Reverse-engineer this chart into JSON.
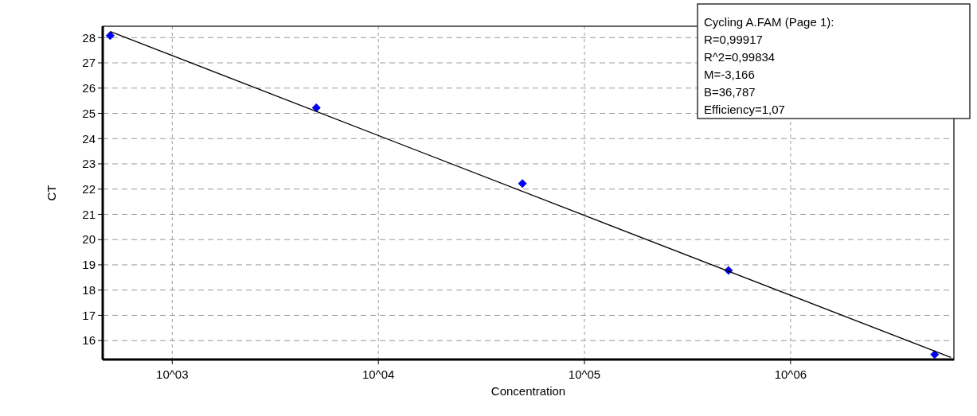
{
  "chart_data": {
    "type": "scatter",
    "xlabel": "Concentration",
    "ylabel": "CT",
    "log": "x",
    "grid": true,
    "xlim": [
      460,
      6200000
    ],
    "ylim": [
      15.25,
      28.45
    ],
    "xticks": [
      {
        "value": 1000,
        "label": "10^03"
      },
      {
        "value": 10000,
        "label": "10^04"
      },
      {
        "value": 100000,
        "label": "10^05"
      },
      {
        "value": 1000000,
        "label": "10^06"
      }
    ],
    "yticks": [
      16,
      17,
      18,
      19,
      20,
      21,
      22,
      23,
      24,
      25,
      26,
      27,
      28
    ],
    "series": [
      {
        "type": "scatter",
        "color": "#0000ff",
        "marker": "diamond",
        "x": [
          500,
          5000,
          50000,
          500000,
          5000000
        ],
        "values": [
          28.08,
          25.22,
          22.22,
          18.78,
          15.45
        ]
      },
      {
        "type": "line",
        "color": "#000000",
        "marker": "none",
        "line_style": "solid",
        "x": [
          500,
          6000000
        ],
        "values": [
          28.24,
          15.33
        ]
      }
    ],
    "annotations": [
      "Cycling A.FAM (Page 1):",
      "R=0,99917",
      "R^2=0,99834",
      "M=-3,166",
      "B=36,787",
      "Efficiency=1,07"
    ]
  }
}
